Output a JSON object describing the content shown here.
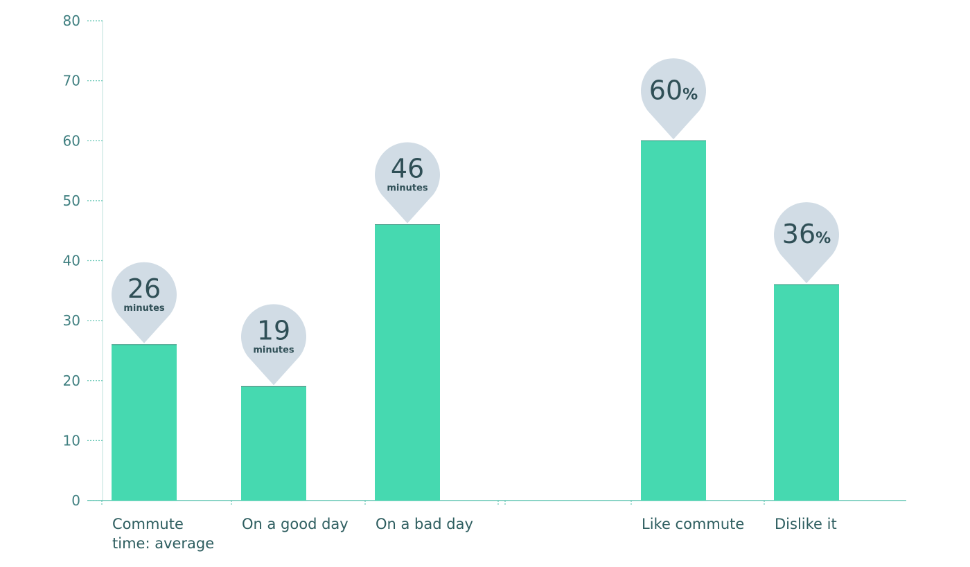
{
  "chart_data": {
    "type": "bar",
    "title": "",
    "xlabel": "",
    "ylabel": "",
    "ylim": [
      0,
      80
    ],
    "yticks": [
      0,
      10,
      20,
      30,
      40,
      50,
      60,
      70,
      80
    ],
    "grid": false,
    "bar_color": "#46d9b0",
    "axis_color": "#63c6b4",
    "callout_color": "#d1dce5",
    "categories": [
      [
        "Commute",
        "time: average"
      ],
      [
        "On a good day"
      ],
      [
        "On a bad day"
      ],
      [],
      [
        "Like commute"
      ],
      [
        "Dislike it"
      ]
    ],
    "values": [
      26,
      19,
      46,
      null,
      60,
      36
    ],
    "callouts": [
      {
        "value": "26",
        "unit": "minutes"
      },
      {
        "value": "19",
        "unit": "minutes"
      },
      {
        "value": "46",
        "unit": "minutes"
      },
      null,
      {
        "value": "60",
        "unit": "%"
      },
      {
        "value": "36",
        "unit": "%"
      }
    ]
  }
}
